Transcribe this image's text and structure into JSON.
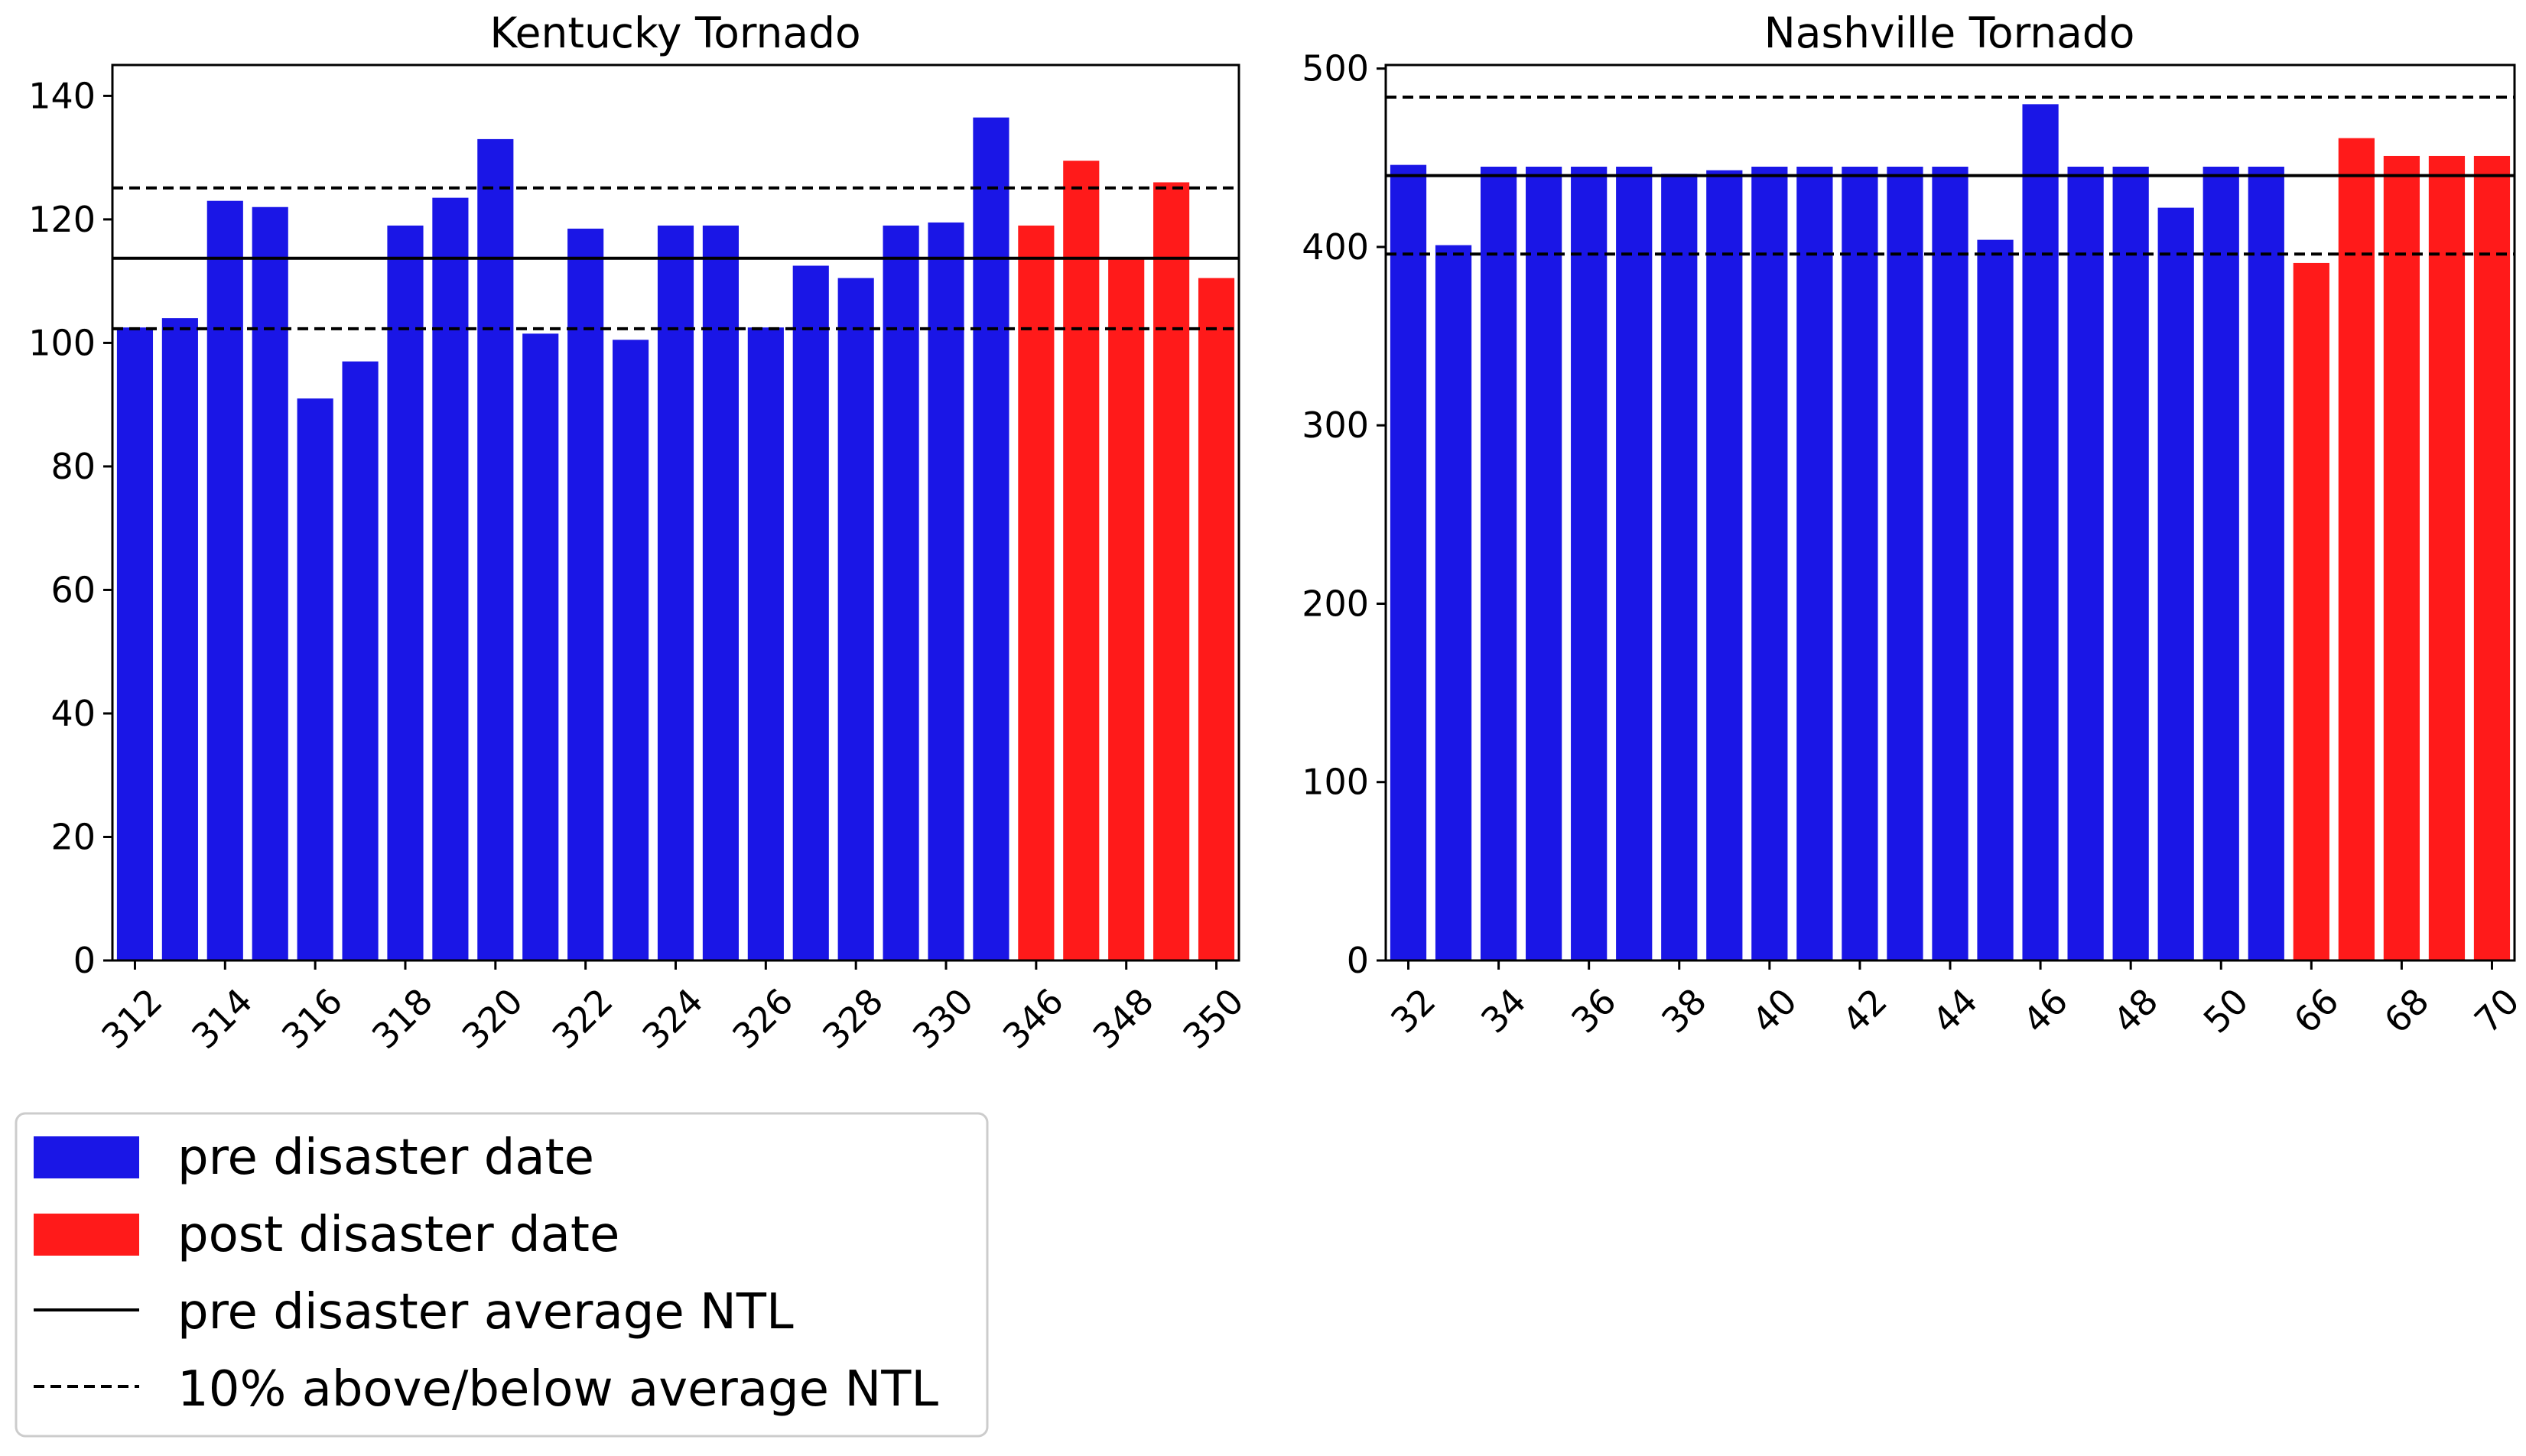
{
  "colors": {
    "pre": "#1a16e6",
    "post": "#ff1a1a",
    "avg_line": "#000000"
  },
  "chart_data": [
    {
      "type": "bar",
      "title": "Kentucky Tornado",
      "xlabel": "",
      "ylabel": "",
      "categories": [
        "312",
        "313",
        "314",
        "315",
        "316",
        "317",
        "318",
        "319",
        "320",
        "321",
        "322",
        "323",
        "324",
        "325",
        "326",
        "327",
        "328",
        "329",
        "330",
        "331",
        "346",
        "347",
        "348",
        "349",
        "350"
      ],
      "x_tick_labels": [
        "312",
        "314",
        "316",
        "318",
        "320",
        "322",
        "324",
        "326",
        "328",
        "330",
        "346",
        "348",
        "350"
      ],
      "values": [
        102.5,
        104,
        123,
        122,
        91,
        97,
        119,
        123.5,
        133,
        101.5,
        118.5,
        100.5,
        119,
        119,
        102.5,
        112.5,
        110.5,
        119,
        119.5,
        136.5,
        119,
        129.5,
        113.5,
        126,
        110.5
      ],
      "period": [
        "pre",
        "pre",
        "pre",
        "pre",
        "pre",
        "pre",
        "pre",
        "pre",
        "pre",
        "pre",
        "pre",
        "pre",
        "pre",
        "pre",
        "pre",
        "pre",
        "pre",
        "pre",
        "pre",
        "pre",
        "post",
        "post",
        "post",
        "post",
        "post"
      ],
      "pre_disaster_average": 113.7,
      "upper_10pct": 125.1,
      "lower_10pct": 102.3,
      "ylim": [
        0,
        145
      ],
      "y_ticks": [
        0,
        20,
        40,
        60,
        80,
        100,
        120,
        140
      ]
    },
    {
      "type": "bar",
      "title": "Nashville Tornado",
      "xlabel": "",
      "ylabel": "",
      "categories": [
        "32",
        "33",
        "34",
        "35",
        "36",
        "37",
        "38",
        "39",
        "40",
        "41",
        "42",
        "43",
        "44",
        "45",
        "46",
        "47",
        "48",
        "49",
        "50",
        "51",
        "66",
        "67",
        "68",
        "69",
        "70"
      ],
      "x_tick_labels": [
        "32",
        "34",
        "36",
        "38",
        "40",
        "42",
        "44",
        "46",
        "48",
        "50",
        "66",
        "68",
        "70"
      ],
      "values": [
        446,
        401,
        445,
        445,
        445,
        445,
        441,
        443,
        445,
        445,
        445,
        445,
        445,
        404,
        480,
        445,
        445,
        422,
        445,
        445,
        391,
        461,
        451,
        451,
        451
      ],
      "period": [
        "pre",
        "pre",
        "pre",
        "pre",
        "pre",
        "pre",
        "pre",
        "pre",
        "pre",
        "pre",
        "pre",
        "pre",
        "pre",
        "pre",
        "pre",
        "pre",
        "pre",
        "pre",
        "pre",
        "pre",
        "post",
        "post",
        "post",
        "post",
        "post"
      ],
      "pre_disaster_average": 440,
      "upper_10pct": 484,
      "lower_10pct": 396,
      "ylim": [
        0,
        502
      ],
      "y_ticks": [
        0,
        100,
        200,
        300,
        400,
        500
      ]
    }
  ],
  "legend": {
    "position": "bottom-left",
    "items": [
      {
        "label": "pre disaster date",
        "kind": "patch",
        "color_key": "pre"
      },
      {
        "label": "post disaster date",
        "kind": "patch",
        "color_key": "post"
      },
      {
        "label": "pre disaster average NTL",
        "kind": "solid-line",
        "color_key": "avg_line"
      },
      {
        "label": "10% above/below average NTL",
        "kind": "dashed-line",
        "color_key": "avg_line"
      }
    ]
  }
}
